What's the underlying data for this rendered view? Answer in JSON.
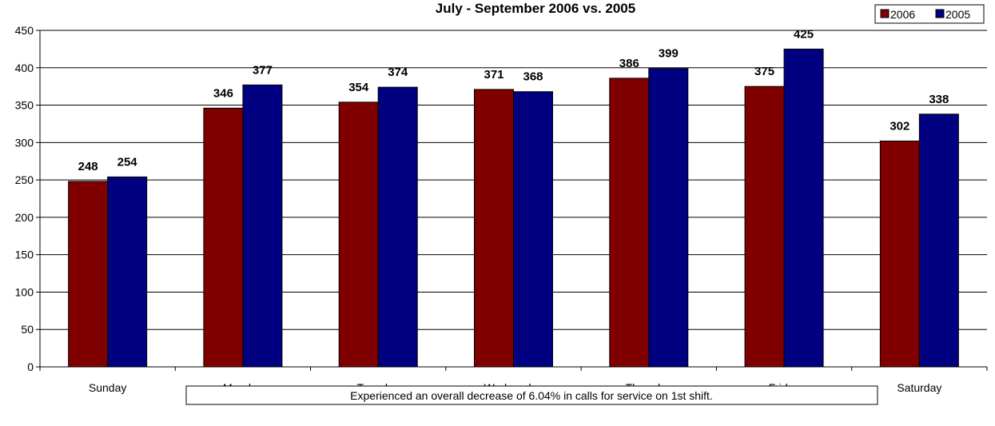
{
  "chart_data": {
    "type": "bar",
    "title": "July - September 2006 vs. 2005",
    "xlabel": "",
    "ylabel": "",
    "categories": [
      "Sunday",
      "Monday",
      "Tuesday",
      "Wednesday",
      "Thursday",
      "Friday",
      "Saturday"
    ],
    "series": [
      {
        "name": "2006",
        "color": "#800000",
        "values": [
          248,
          346,
          354,
          371,
          386,
          375,
          302
        ]
      },
      {
        "name": "2005",
        "color": "#000080",
        "values": [
          254,
          377,
          374,
          368,
          399,
          425,
          338
        ]
      }
    ],
    "ylim": [
      0,
      450
    ],
    "yticks": [
      0,
      50,
      100,
      150,
      200,
      250,
      300,
      350,
      400,
      450
    ],
    "grid": true,
    "legend": "top-right",
    "annotation": "Experienced an overall decrease of 6.04% in calls for service on 1st shift."
  }
}
